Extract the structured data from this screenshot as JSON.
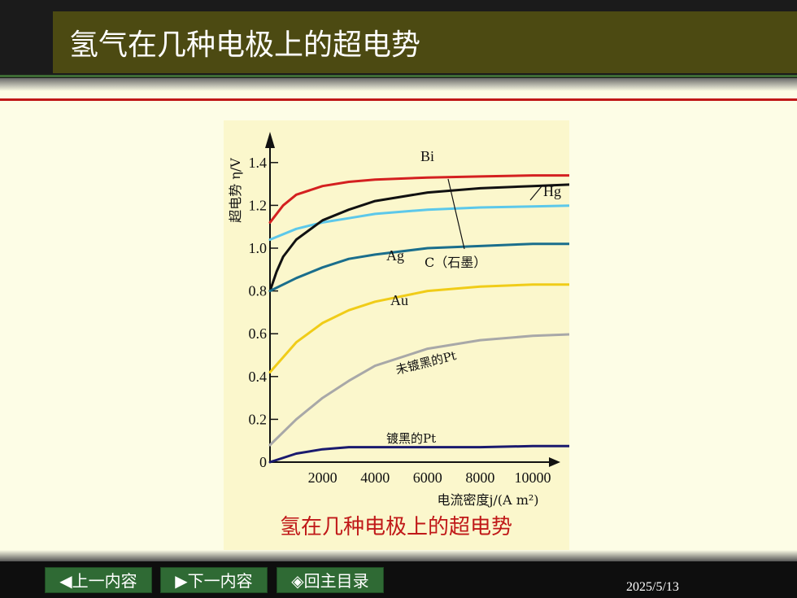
{
  "slide": {
    "title": "氢气在几种电极上的超电势",
    "date": "2025/5/13",
    "nav": {
      "prev": "◀上一内容",
      "next": "▶下一内容",
      "home": "◈回主目录"
    }
  },
  "colors": {
    "Bi": "#d42020",
    "Hg": "#5cc8ea",
    "C": "#111111",
    "Ag": "#1a6e8c",
    "Au": "#f0cc18",
    "Pt_bright": "#a8a8a8",
    "Pt_black": "#1a1a6e"
  },
  "chart_data": {
    "type": "line",
    "title": "氢在几种电极上的超电势",
    "xlabel": "电流密度j/(A m²)",
    "ylabel": "超电势 η/V",
    "xlim": [
      0,
      12500
    ],
    "ylim": [
      0,
      1.5
    ],
    "xticks": [
      "2000",
      "4000",
      "6000",
      "8000",
      "10000"
    ],
    "yticks": [
      "0",
      "0.2",
      "0.4",
      "0.6",
      "0.8",
      "1.0",
      "1.2",
      "1.4"
    ],
    "grid": false,
    "series": [
      {
        "name": "Bi",
        "x": [
          0,
          500,
          1000,
          2000,
          3000,
          4000,
          6000,
          8000,
          10000,
          12000
        ],
        "y": [
          1.12,
          1.2,
          1.25,
          1.29,
          1.31,
          1.32,
          1.33,
          1.335,
          1.34,
          1.34
        ]
      },
      {
        "name": "Hg",
        "x": [
          0,
          1000,
          2000,
          3000,
          4000,
          6000,
          8000,
          10000,
          12000
        ],
        "y": [
          1.04,
          1.09,
          1.12,
          1.14,
          1.16,
          1.18,
          1.19,
          1.195,
          1.2
        ]
      },
      {
        "name": "C（石墨）",
        "x": [
          0,
          250,
          500,
          1000,
          2000,
          3000,
          4000,
          6000,
          8000,
          10000,
          12000
        ],
        "y": [
          0.8,
          0.89,
          0.96,
          1.04,
          1.13,
          1.18,
          1.22,
          1.26,
          1.28,
          1.29,
          1.3
        ]
      },
      {
        "name": "Ag",
        "x": [
          0,
          1000,
          2000,
          3000,
          4000,
          6000,
          8000,
          10000,
          12000
        ],
        "y": [
          0.8,
          0.86,
          0.91,
          0.95,
          0.97,
          1.0,
          1.01,
          1.02,
          1.02
        ]
      },
      {
        "name": "Au",
        "x": [
          0,
          1000,
          2000,
          3000,
          4000,
          6000,
          8000,
          10000,
          12000
        ],
        "y": [
          0.42,
          0.56,
          0.65,
          0.71,
          0.75,
          0.8,
          0.82,
          0.83,
          0.83
        ]
      },
      {
        "name": "未镀黑的Pt",
        "x": [
          0,
          1000,
          2000,
          3000,
          4000,
          6000,
          8000,
          10000,
          12000
        ],
        "y": [
          0.08,
          0.2,
          0.3,
          0.38,
          0.45,
          0.53,
          0.57,
          0.59,
          0.6
        ]
      },
      {
        "name": "镀黑的Pt",
        "x": [
          0,
          1000,
          2000,
          3000,
          4000,
          6000,
          8000,
          10000,
          11500
        ],
        "y": [
          0.0,
          0.04,
          0.06,
          0.07,
          0.07,
          0.07,
          0.07,
          0.075,
          0.075
        ]
      }
    ],
    "annotations": {
      "Bi": "Bi",
      "Hg": "Hg",
      "Ag": "Ag",
      "C": "C（石墨）",
      "Au": "Au",
      "Pt_bright": "未镀黑的Pt",
      "Pt_black": "镀黑的Pt"
    }
  }
}
